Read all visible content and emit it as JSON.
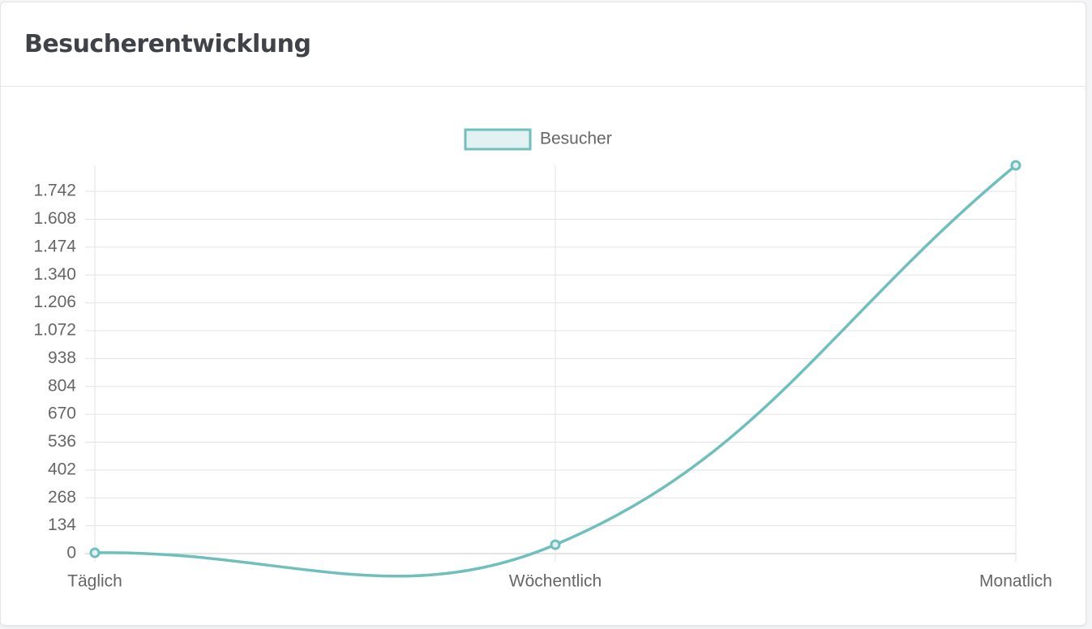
{
  "chart_data": {
    "type": "line",
    "title": "Besucherentwicklung",
    "categories": [
      "Täglich",
      "Wöchentlich",
      "Monatlich"
    ],
    "series": [
      {
        "name": "Besucher",
        "color": "#6fbfbd",
        "values": [
          4,
          43,
          1867
        ]
      }
    ],
    "ylim": [
      0,
      1867
    ],
    "yticks": [
      0,
      134,
      268,
      402,
      536,
      670,
      804,
      938,
      {
        "value": 1072,
        "label": "1.072"
      },
      {
        "value": 1206,
        "label": "1.206"
      },
      {
        "value": 1340,
        "label": "1.340"
      },
      {
        "value": 1474,
        "label": "1.474"
      },
      {
        "value": 1608,
        "label": "1.608"
      },
      {
        "value": 1742,
        "label": "1.742"
      }
    ],
    "grid": true,
    "legend": "top"
  }
}
